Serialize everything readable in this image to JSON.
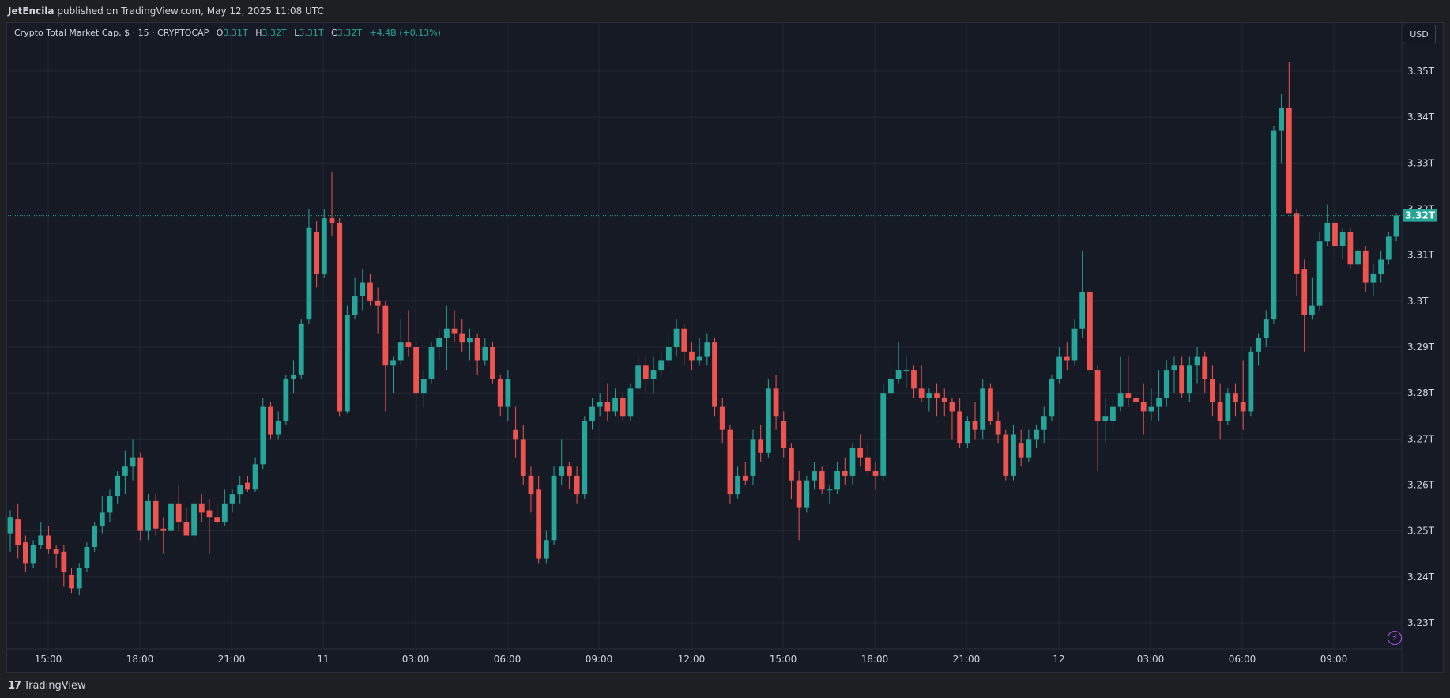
{
  "header": {
    "author": "JetEncila",
    "publish_text": "published on TradingView.com, May 12, 2025 11:08 UTC"
  },
  "legend": {
    "symbol": "Crypto Total Market Cap, $ · 15 · CRYPTOCAP",
    "o_label": "O",
    "o_value": "3.31T",
    "h_label": "H",
    "h_value": "3.32T",
    "l_label": "L",
    "l_value": "3.31T",
    "c_label": "C",
    "c_value": "3.32T",
    "change": "+4.4B (+0.13%)"
  },
  "currency_button": "USD",
  "footer": {
    "brand": "TradingView",
    "brand_mark": "17"
  },
  "colors": {
    "up": "#26a69a",
    "down": "#ef5350",
    "background": "#161a25",
    "grid": "#232733",
    "text": "#d1d4dc",
    "price_label_bg": "#26a69a",
    "alert_icon": "#b24df5"
  },
  "icons": {
    "alert": "lightning-bolt-icon"
  },
  "chart_data": {
    "type": "candlestick",
    "title": "Crypto Total Market Cap, $ · 15 · CRYPTOCAP",
    "y_ticks": [
      "3.23T",
      "3.24T",
      "3.25T",
      "3.26T",
      "3.27T",
      "3.28T",
      "3.29T",
      "3.3T",
      "3.31T",
      "3.32T",
      "3.33T",
      "3.34T",
      "3.35T"
    ],
    "y_tick_values": [
      3.23,
      3.24,
      3.25,
      3.26,
      3.27,
      3.28,
      3.29,
      3.3,
      3.31,
      3.32,
      3.33,
      3.34,
      3.35
    ],
    "ylim": [
      3.2245,
      3.3555
    ],
    "x_ticks": [
      "15:00",
      "18:00",
      "21:00",
      "11",
      "03:00",
      "06:00",
      "09:00",
      "12:00",
      "15:00",
      "18:00",
      "21:00",
      "12",
      "03:00",
      "06:00",
      "09:00"
    ],
    "current_price": 3.3186,
    "current_price_label": "3.32T",
    "grid": true,
    "candles": [
      {
        "o": 3.2495,
        "h": 3.2545,
        "l": 3.2455,
        "c": 3.253
      },
      {
        "o": 3.2525,
        "h": 3.256,
        "l": 3.244,
        "c": 3.247
      },
      {
        "o": 3.2475,
        "h": 3.249,
        "l": 3.241,
        "c": 3.243
      },
      {
        "o": 3.243,
        "h": 3.248,
        "l": 3.242,
        "c": 3.247
      },
      {
        "o": 3.247,
        "h": 3.252,
        "l": 3.246,
        "c": 3.249
      },
      {
        "o": 3.249,
        "h": 3.251,
        "l": 3.245,
        "c": 3.246
      },
      {
        "o": 3.246,
        "h": 3.247,
        "l": 3.242,
        "c": 3.245
      },
      {
        "o": 3.2455,
        "h": 3.247,
        "l": 3.238,
        "c": 3.241
      },
      {
        "o": 3.2405,
        "h": 3.242,
        "l": 3.2365,
        "c": 3.2375
      },
      {
        "o": 3.2375,
        "h": 3.243,
        "l": 3.236,
        "c": 3.242
      },
      {
        "o": 3.242,
        "h": 3.2475,
        "l": 3.241,
        "c": 3.2465
      },
      {
        "o": 3.2465,
        "h": 3.252,
        "l": 3.2455,
        "c": 3.251
      },
      {
        "o": 3.251,
        "h": 3.2575,
        "l": 3.2495,
        "c": 3.254
      },
      {
        "o": 3.254,
        "h": 3.259,
        "l": 3.252,
        "c": 3.2575
      },
      {
        "o": 3.2575,
        "h": 3.263,
        "l": 3.256,
        "c": 3.262
      },
      {
        "o": 3.262,
        "h": 3.2675,
        "l": 3.258,
        "c": 3.264
      },
      {
        "o": 3.264,
        "h": 3.27,
        "l": 3.261,
        "c": 3.266
      },
      {
        "o": 3.266,
        "h": 3.267,
        "l": 3.248,
        "c": 3.25
      },
      {
        "o": 3.25,
        "h": 3.258,
        "l": 3.248,
        "c": 3.2565
      },
      {
        "o": 3.2565,
        "h": 3.258,
        "l": 3.249,
        "c": 3.2505
      },
      {
        "o": 3.2505,
        "h": 3.253,
        "l": 3.245,
        "c": 3.25
      },
      {
        "o": 3.25,
        "h": 3.259,
        "l": 3.249,
        "c": 3.256
      },
      {
        "o": 3.256,
        "h": 3.26,
        "l": 3.25,
        "c": 3.252
      },
      {
        "o": 3.252,
        "h": 3.255,
        "l": 3.249,
        "c": 3.249
      },
      {
        "o": 3.249,
        "h": 3.257,
        "l": 3.248,
        "c": 3.256
      },
      {
        "o": 3.256,
        "h": 3.258,
        "l": 3.252,
        "c": 3.254
      },
      {
        "o": 3.2545,
        "h": 3.257,
        "l": 3.245,
        "c": 3.253
      },
      {
        "o": 3.253,
        "h": 3.256,
        "l": 3.251,
        "c": 3.252
      },
      {
        "o": 3.252,
        "h": 3.259,
        "l": 3.251,
        "c": 3.256
      },
      {
        "o": 3.256,
        "h": 3.259,
        "l": 3.254,
        "c": 3.258
      },
      {
        "o": 3.258,
        "h": 3.262,
        "l": 3.256,
        "c": 3.26
      },
      {
        "o": 3.2605,
        "h": 3.262,
        "l": 3.2585,
        "c": 3.259
      },
      {
        "o": 3.259,
        "h": 3.266,
        "l": 3.2585,
        "c": 3.2645
      },
      {
        "o": 3.2645,
        "h": 3.279,
        "l": 3.2635,
        "c": 3.277
      },
      {
        "o": 3.277,
        "h": 3.278,
        "l": 3.27,
        "c": 3.271
      },
      {
        "o": 3.271,
        "h": 3.276,
        "l": 3.27,
        "c": 3.274
      },
      {
        "o": 3.274,
        "h": 3.284,
        "l": 3.273,
        "c": 3.283
      },
      {
        "o": 3.283,
        "h": 3.287,
        "l": 3.28,
        "c": 3.284
      },
      {
        "o": 3.284,
        "h": 3.296,
        "l": 3.283,
        "c": 3.295
      },
      {
        "o": 3.296,
        "h": 3.32,
        "l": 3.295,
        "c": 3.316
      },
      {
        "o": 3.315,
        "h": 3.3175,
        "l": 3.303,
        "c": 3.306
      },
      {
        "o": 3.306,
        "h": 3.32,
        "l": 3.305,
        "c": 3.318
      },
      {
        "o": 3.318,
        "h": 3.328,
        "l": 3.314,
        "c": 3.317
      },
      {
        "o": 3.317,
        "h": 3.318,
        "l": 3.275,
        "c": 3.276
      },
      {
        "o": 3.276,
        "h": 3.299,
        "l": 3.2755,
        "c": 3.297
      },
      {
        "o": 3.297,
        "h": 3.305,
        "l": 3.296,
        "c": 3.301
      },
      {
        "o": 3.301,
        "h": 3.307,
        "l": 3.298,
        "c": 3.304
      },
      {
        "o": 3.304,
        "h": 3.306,
        "l": 3.299,
        "c": 3.3
      },
      {
        "o": 3.3,
        "h": 3.303,
        "l": 3.293,
        "c": 3.299
      },
      {
        "o": 3.299,
        "h": 3.3,
        "l": 3.276,
        "c": 3.286
      },
      {
        "o": 3.286,
        "h": 3.288,
        "l": 3.28,
        "c": 3.287
      },
      {
        "o": 3.287,
        "h": 3.296,
        "l": 3.286,
        "c": 3.291
      },
      {
        "o": 3.291,
        "h": 3.298,
        "l": 3.288,
        "c": 3.29
      },
      {
        "o": 3.29,
        "h": 3.291,
        "l": 3.268,
        "c": 3.28
      },
      {
        "o": 3.28,
        "h": 3.285,
        "l": 3.277,
        "c": 3.283
      },
      {
        "o": 3.283,
        "h": 3.291,
        "l": 3.282,
        "c": 3.29
      },
      {
        "o": 3.29,
        "h": 3.294,
        "l": 3.287,
        "c": 3.292
      },
      {
        "o": 3.292,
        "h": 3.299,
        "l": 3.285,
        "c": 3.294
      },
      {
        "o": 3.294,
        "h": 3.298,
        "l": 3.291,
        "c": 3.293
      },
      {
        "o": 3.293,
        "h": 3.296,
        "l": 3.289,
        "c": 3.291
      },
      {
        "o": 3.291,
        "h": 3.294,
        "l": 3.287,
        "c": 3.292
      },
      {
        "o": 3.292,
        "h": 3.293,
        "l": 3.284,
        "c": 3.287
      },
      {
        "o": 3.287,
        "h": 3.292,
        "l": 3.286,
        "c": 3.29
      },
      {
        "o": 3.29,
        "h": 3.291,
        "l": 3.282,
        "c": 3.283
      },
      {
        "o": 3.283,
        "h": 3.284,
        "l": 3.275,
        "c": 3.277
      },
      {
        "o": 3.277,
        "h": 3.285,
        "l": 3.274,
        "c": 3.283
      },
      {
        "o": 3.272,
        "h": 3.277,
        "l": 3.266,
        "c": 3.27
      },
      {
        "o": 3.27,
        "h": 3.273,
        "l": 3.26,
        "c": 3.262
      },
      {
        "o": 3.262,
        "h": 3.264,
        "l": 3.254,
        "c": 3.258
      },
      {
        "o": 3.259,
        "h": 3.262,
        "l": 3.243,
        "c": 3.244
      },
      {
        "o": 3.244,
        "h": 3.25,
        "l": 3.243,
        "c": 3.248
      },
      {
        "o": 3.248,
        "h": 3.264,
        "l": 3.247,
        "c": 3.262
      },
      {
        "o": 3.262,
        "h": 3.27,
        "l": 3.26,
        "c": 3.264
      },
      {
        "o": 3.264,
        "h": 3.265,
        "l": 3.259,
        "c": 3.262
      },
      {
        "o": 3.262,
        "h": 3.264,
        "l": 3.256,
        "c": 3.258
      },
      {
        "o": 3.258,
        "h": 3.275,
        "l": 3.257,
        "c": 3.274
      },
      {
        "o": 3.274,
        "h": 3.279,
        "l": 3.272,
        "c": 3.277
      },
      {
        "o": 3.277,
        "h": 3.28,
        "l": 3.275,
        "c": 3.278
      },
      {
        "o": 3.278,
        "h": 3.282,
        "l": 3.274,
        "c": 3.276
      },
      {
        "o": 3.276,
        "h": 3.281,
        "l": 3.275,
        "c": 3.279
      },
      {
        "o": 3.279,
        "h": 3.28,
        "l": 3.274,
        "c": 3.275
      },
      {
        "o": 3.275,
        "h": 3.282,
        "l": 3.274,
        "c": 3.281
      },
      {
        "o": 3.281,
        "h": 3.288,
        "l": 3.28,
        "c": 3.286
      },
      {
        "o": 3.286,
        "h": 3.288,
        "l": 3.28,
        "c": 3.283
      },
      {
        "o": 3.283,
        "h": 3.288,
        "l": 3.28,
        "c": 3.285
      },
      {
        "o": 3.285,
        "h": 3.289,
        "l": 3.284,
        "c": 3.287
      },
      {
        "o": 3.287,
        "h": 3.293,
        "l": 3.286,
        "c": 3.29
      },
      {
        "o": 3.29,
        "h": 3.296,
        "l": 3.288,
        "c": 3.294
      },
      {
        "o": 3.294,
        "h": 3.295,
        "l": 3.286,
        "c": 3.289
      },
      {
        "o": 3.289,
        "h": 3.291,
        "l": 3.285,
        "c": 3.287
      },
      {
        "o": 3.287,
        "h": 3.292,
        "l": 3.286,
        "c": 3.288
      },
      {
        "o": 3.288,
        "h": 3.293,
        "l": 3.286,
        "c": 3.291
      },
      {
        "o": 3.291,
        "h": 3.292,
        "l": 3.275,
        "c": 3.277
      },
      {
        "o": 3.277,
        "h": 3.279,
        "l": 3.269,
        "c": 3.272
      },
      {
        "o": 3.272,
        "h": 3.273,
        "l": 3.256,
        "c": 3.258
      },
      {
        "o": 3.258,
        "h": 3.264,
        "l": 3.257,
        "c": 3.262
      },
      {
        "o": 3.262,
        "h": 3.265,
        "l": 3.26,
        "c": 3.261
      },
      {
        "o": 3.262,
        "h": 3.272,
        "l": 3.26,
        "c": 3.27
      },
      {
        "o": 3.27,
        "h": 3.273,
        "l": 3.265,
        "c": 3.267
      },
      {
        "o": 3.267,
        "h": 3.283,
        "l": 3.266,
        "c": 3.281
      },
      {
        "o": 3.281,
        "h": 3.284,
        "l": 3.272,
        "c": 3.275
      },
      {
        "o": 3.274,
        "h": 3.276,
        "l": 3.266,
        "c": 3.268
      },
      {
        "o": 3.268,
        "h": 3.269,
        "l": 3.257,
        "c": 3.261
      },
      {
        "o": 3.261,
        "h": 3.263,
        "l": 3.248,
        "c": 3.255
      },
      {
        "o": 3.255,
        "h": 3.262,
        "l": 3.254,
        "c": 3.261
      },
      {
        "o": 3.261,
        "h": 3.265,
        "l": 3.259,
        "c": 3.263
      },
      {
        "o": 3.263,
        "h": 3.264,
        "l": 3.258,
        "c": 3.259
      },
      {
        "o": 3.259,
        "h": 3.26,
        "l": 3.256,
        "c": 3.259
      },
      {
        "o": 3.259,
        "h": 3.265,
        "l": 3.258,
        "c": 3.263
      },
      {
        "o": 3.263,
        "h": 3.266,
        "l": 3.26,
        "c": 3.262
      },
      {
        "o": 3.262,
        "h": 3.269,
        "l": 3.26,
        "c": 3.268
      },
      {
        "o": 3.268,
        "h": 3.271,
        "l": 3.264,
        "c": 3.266
      },
      {
        "o": 3.266,
        "h": 3.269,
        "l": 3.262,
        "c": 3.263
      },
      {
        "o": 3.263,
        "h": 3.265,
        "l": 3.259,
        "c": 3.262
      },
      {
        "o": 3.262,
        "h": 3.282,
        "l": 3.261,
        "c": 3.28
      },
      {
        "o": 3.28,
        "h": 3.286,
        "l": 3.279,
        "c": 3.283
      },
      {
        "o": 3.283,
        "h": 3.291,
        "l": 3.282,
        "c": 3.285
      },
      {
        "o": 3.285,
        "h": 3.288,
        "l": 3.281,
        "c": 3.285
      },
      {
        "o": 3.285,
        "h": 3.286,
        "l": 3.279,
        "c": 3.281
      },
      {
        "o": 3.281,
        "h": 3.286,
        "l": 3.278,
        "c": 3.279
      },
      {
        "o": 3.279,
        "h": 3.281,
        "l": 3.276,
        "c": 3.28
      },
      {
        "o": 3.28,
        "h": 3.282,
        "l": 3.275,
        "c": 3.279
      },
      {
        "o": 3.279,
        "h": 3.281,
        "l": 3.275,
        "c": 3.278
      },
      {
        "o": 3.278,
        "h": 3.279,
        "l": 3.27,
        "c": 3.276
      },
      {
        "o": 3.276,
        "h": 3.279,
        "l": 3.268,
        "c": 3.269
      },
      {
        "o": 3.269,
        "h": 3.275,
        "l": 3.268,
        "c": 3.274
      },
      {
        "o": 3.274,
        "h": 3.278,
        "l": 3.27,
        "c": 3.272
      },
      {
        "o": 3.272,
        "h": 3.283,
        "l": 3.27,
        "c": 3.281
      },
      {
        "o": 3.281,
        "h": 3.282,
        "l": 3.273,
        "c": 3.274
      },
      {
        "o": 3.274,
        "h": 3.276,
        "l": 3.269,
        "c": 3.271
      },
      {
        "o": 3.271,
        "h": 3.272,
        "l": 3.261,
        "c": 3.262
      },
      {
        "o": 3.262,
        "h": 3.273,
        "l": 3.261,
        "c": 3.271
      },
      {
        "o": 3.269,
        "h": 3.272,
        "l": 3.264,
        "c": 3.266
      },
      {
        "o": 3.266,
        "h": 3.272,
        "l": 3.265,
        "c": 3.27
      },
      {
        "o": 3.27,
        "h": 3.273,
        "l": 3.268,
        "c": 3.272
      },
      {
        "o": 3.272,
        "h": 3.277,
        "l": 3.269,
        "c": 3.275
      },
      {
        "o": 3.275,
        "h": 3.284,
        "l": 3.274,
        "c": 3.283
      },
      {
        "o": 3.283,
        "h": 3.29,
        "l": 3.282,
        "c": 3.288
      },
      {
        "o": 3.288,
        "h": 3.291,
        "l": 3.285,
        "c": 3.287
      },
      {
        "o": 3.287,
        "h": 3.296,
        "l": 3.286,
        "c": 3.294
      },
      {
        "o": 3.294,
        "h": 3.311,
        "l": 3.292,
        "c": 3.302
      },
      {
        "o": 3.302,
        "h": 3.303,
        "l": 3.284,
        "c": 3.285
      },
      {
        "o": 3.285,
        "h": 3.286,
        "l": 3.263,
        "c": 3.274
      },
      {
        "o": 3.274,
        "h": 3.279,
        "l": 3.269,
        "c": 3.275
      },
      {
        "o": 3.274,
        "h": 3.279,
        "l": 3.272,
        "c": 3.277
      },
      {
        "o": 3.277,
        "h": 3.288,
        "l": 3.276,
        "c": 3.28
      },
      {
        "o": 3.28,
        "h": 3.288,
        "l": 3.277,
        "c": 3.279
      },
      {
        "o": 3.279,
        "h": 3.282,
        "l": 3.274,
        "c": 3.278
      },
      {
        "o": 3.278,
        "h": 3.282,
        "l": 3.271,
        "c": 3.276
      },
      {
        "o": 3.276,
        "h": 3.281,
        "l": 3.274,
        "c": 3.277
      },
      {
        "o": 3.277,
        "h": 3.285,
        "l": 3.274,
        "c": 3.279
      },
      {
        "o": 3.279,
        "h": 3.287,
        "l": 3.277,
        "c": 3.285
      },
      {
        "o": 3.285,
        "h": 3.288,
        "l": 3.28,
        "c": 3.286
      },
      {
        "o": 3.286,
        "h": 3.288,
        "l": 3.279,
        "c": 3.28
      },
      {
        "o": 3.28,
        "h": 3.288,
        "l": 3.278,
        "c": 3.286
      },
      {
        "o": 3.286,
        "h": 3.29,
        "l": 3.282,
        "c": 3.288
      },
      {
        "o": 3.288,
        "h": 3.289,
        "l": 3.28,
        "c": 3.283
      },
      {
        "o": 3.283,
        "h": 3.286,
        "l": 3.275,
        "c": 3.278
      },
      {
        "o": 3.278,
        "h": 3.282,
        "l": 3.27,
        "c": 3.274
      },
      {
        "o": 3.274,
        "h": 3.281,
        "l": 3.273,
        "c": 3.28
      },
      {
        "o": 3.28,
        "h": 3.282,
        "l": 3.275,
        "c": 3.278
      },
      {
        "o": 3.278,
        "h": 3.287,
        "l": 3.272,
        "c": 3.276
      },
      {
        "o": 3.276,
        "h": 3.29,
        "l": 3.275,
        "c": 3.289
      },
      {
        "o": 3.289,
        "h": 3.293,
        "l": 3.286,
        "c": 3.292
      },
      {
        "o": 3.292,
        "h": 3.298,
        "l": 3.29,
        "c": 3.296
      },
      {
        "o": 3.296,
        "h": 3.338,
        "l": 3.295,
        "c": 3.337
      },
      {
        "o": 3.337,
        "h": 3.345,
        "l": 3.33,
        "c": 3.342
      },
      {
        "o": 3.342,
        "h": 3.352,
        "l": 3.319,
        "c": 3.319
      },
      {
        "o": 3.319,
        "h": 3.32,
        "l": 3.301,
        "c": 3.306
      },
      {
        "o": 3.307,
        "h": 3.309,
        "l": 3.289,
        "c": 3.297
      },
      {
        "o": 3.297,
        "h": 3.305,
        "l": 3.296,
        "c": 3.299
      },
      {
        "o": 3.299,
        "h": 3.315,
        "l": 3.298,
        "c": 3.313
      },
      {
        "o": 3.313,
        "h": 3.321,
        "l": 3.312,
        "c": 3.317
      },
      {
        "o": 3.317,
        "h": 3.32,
        "l": 3.31,
        "c": 3.312
      },
      {
        "o": 3.312,
        "h": 3.316,
        "l": 3.309,
        "c": 3.315
      },
      {
        "o": 3.315,
        "h": 3.316,
        "l": 3.307,
        "c": 3.308
      },
      {
        "o": 3.308,
        "h": 3.312,
        "l": 3.307,
        "c": 3.311
      },
      {
        "o": 3.311,
        "h": 3.312,
        "l": 3.302,
        "c": 3.304
      },
      {
        "o": 3.304,
        "h": 3.308,
        "l": 3.301,
        "c": 3.306
      },
      {
        "o": 3.306,
        "h": 3.311,
        "l": 3.304,
        "c": 3.309
      },
      {
        "o": 3.309,
        "h": 3.315,
        "l": 3.308,
        "c": 3.314
      },
      {
        "o": 3.314,
        "h": 3.319,
        "l": 3.313,
        "c": 3.3186
      }
    ]
  }
}
